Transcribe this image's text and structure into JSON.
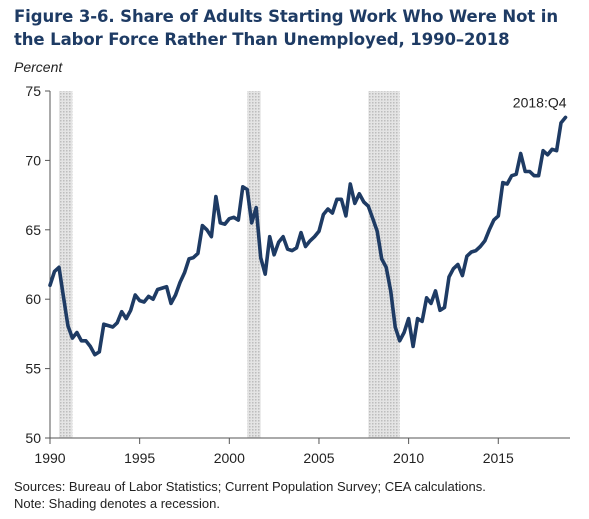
{
  "header": {
    "title": "Figure 3-6. Share of Adults Starting Work Who Were Not in the Labor Force Rather Than Unemployed, 1990–2018",
    "unit_label": "Percent"
  },
  "footer": {
    "sources": "Sources: Bureau of Labor Statistics; Current Population Survey; CEA calculations.",
    "note": "Note: Shading denotes a recession."
  },
  "colors": {
    "line": "#1e3b64",
    "recession": "#c8c8c8",
    "title": "#1e3b64"
  },
  "chart_data": {
    "type": "line",
    "title": "Figure 3-6. Share of Adults Starting Work Who Were Not in the Labor Force Rather Than Unemployed, 1990–2018",
    "xlabel": "",
    "ylabel": "Percent",
    "xlim": [
      1990,
      2019
    ],
    "ylim": [
      50,
      75
    ],
    "x_ticks": [
      1990,
      1995,
      2000,
      2005,
      2010,
      2015
    ],
    "y_ticks": [
      50,
      55,
      60,
      65,
      70,
      75
    ],
    "grid": false,
    "legend": "none",
    "recessions": [
      [
        1990.5,
        1991.25
      ],
      [
        2001.0,
        2001.75
      ],
      [
        2007.75,
        2009.5
      ]
    ],
    "annotation": {
      "text": "2018:Q4",
      "x": 2018.75,
      "y": 73.1
    },
    "series": [
      {
        "x": [
          1990.0,
          1990.25,
          1990.5,
          1990.75,
          1991.0,
          1991.25,
          1991.5,
          1991.75,
          1992.0,
          1992.25,
          1992.5,
          1992.75,
          1993.0,
          1993.25,
          1993.5,
          1993.75,
          1994.0,
          1994.25,
          1994.5,
          1994.75,
          1995.0,
          1995.25,
          1995.5,
          1995.75,
          1996.0,
          1996.25,
          1996.5,
          1996.75,
          1997.0,
          1997.25,
          1997.5,
          1997.75,
          1998.0,
          1998.25,
          1998.5,
          1998.75,
          1999.0,
          1999.25,
          1999.5,
          1999.75,
          2000.0,
          2000.25,
          2000.5,
          2000.75,
          2001.0,
          2001.25,
          2001.5,
          2001.75,
          2002.0,
          2002.25,
          2002.5,
          2002.75,
          2003.0,
          2003.25,
          2003.5,
          2003.75,
          2004.0,
          2004.25,
          2004.5,
          2004.75,
          2005.0,
          2005.25,
          2005.5,
          2005.75,
          2006.0,
          2006.25,
          2006.5,
          2006.75,
          2007.0,
          2007.25,
          2007.5,
          2007.75,
          2008.0,
          2008.25,
          2008.5,
          2008.75,
          2009.0,
          2009.25,
          2009.5,
          2009.75,
          2010.0,
          2010.25,
          2010.5,
          2010.75,
          2011.0,
          2011.25,
          2011.5,
          2011.75,
          2012.0,
          2012.25,
          2012.5,
          2012.75,
          2013.0,
          2013.25,
          2013.5,
          2013.75,
          2014.0,
          2014.25,
          2014.5,
          2014.75,
          2015.0,
          2015.25,
          2015.5,
          2015.75,
          2016.0,
          2016.25,
          2016.5,
          2016.75,
          2017.0,
          2017.25,
          2017.5,
          2017.75,
          2018.0,
          2018.25,
          2018.5,
          2018.75
        ],
        "values": [
          61.0,
          62.0,
          62.3,
          60.2,
          58.1,
          57.2,
          57.6,
          57.0,
          57.0,
          56.6,
          56.0,
          56.2,
          58.2,
          58.1,
          58.0,
          58.3,
          59.1,
          58.6,
          59.2,
          60.3,
          59.9,
          59.8,
          60.2,
          60.0,
          60.7,
          60.8,
          60.9,
          59.7,
          60.3,
          61.2,
          61.9,
          62.9,
          63.0,
          63.3,
          65.3,
          65.0,
          64.5,
          67.4,
          65.5,
          65.4,
          65.8,
          65.9,
          65.7,
          68.1,
          67.9,
          65.5,
          66.6,
          63.0,
          61.8,
          64.5,
          63.2,
          64.1,
          64.5,
          63.6,
          63.5,
          63.7,
          64.8,
          63.8,
          64.2,
          64.5,
          64.9,
          66.1,
          66.5,
          66.2,
          67.2,
          67.2,
          66.0,
          68.3,
          66.9,
          67.6,
          67.0,
          66.7,
          65.8,
          64.9,
          62.9,
          62.3,
          60.6,
          58.0,
          57.0,
          57.6,
          58.6,
          56.6,
          58.6,
          58.4,
          60.1,
          59.7,
          60.6,
          59.2,
          59.4,
          61.6,
          62.2,
          62.5,
          61.7,
          63.1,
          63.4,
          63.5,
          63.8,
          64.2,
          65.0,
          65.7,
          66.0,
          68.4,
          68.3,
          68.9,
          69.0,
          70.5,
          69.2,
          69.2,
          68.9,
          68.9,
          70.7,
          70.4,
          70.8,
          70.7,
          72.7,
          73.1
        ]
      }
    ]
  }
}
